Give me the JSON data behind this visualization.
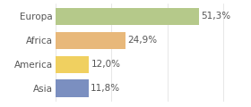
{
  "categories": [
    "Europa",
    "Africa",
    "America",
    "Asia"
  ],
  "values": [
    51.3,
    24.9,
    12.0,
    11.8
  ],
  "labels": [
    "51,3%",
    "24,9%",
    "12,0%",
    "11,8%"
  ],
  "bar_colors": [
    "#b5c98a",
    "#e8b87a",
    "#f0d060",
    "#7b8fc0"
  ],
  "background_color": "#ffffff",
  "xlim": [
    0,
    68
  ],
  "bar_height": 0.72,
  "label_fontsize": 7.5,
  "tick_fontsize": 7.5,
  "label_color": "#555555",
  "tick_color": "#555555",
  "grid_color": "#dddddd"
}
